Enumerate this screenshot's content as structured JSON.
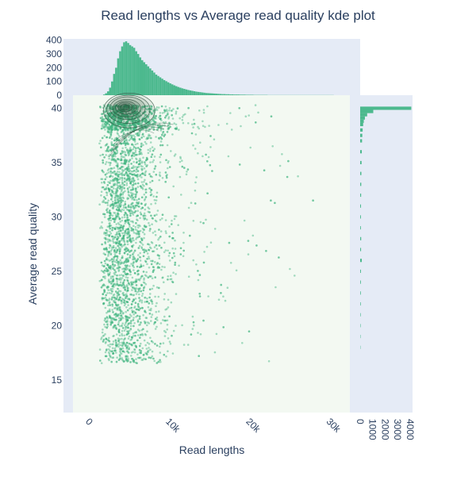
{
  "chart_data": {
    "type": "scatter",
    "title": "Read lengths vs Average read quality kde plot",
    "xlabel": "Read lengths",
    "ylabel": "Average read quality",
    "xlim": [
      -1500,
      33000
    ],
    "ylim": [
      12,
      41.2
    ],
    "x_ticks": [
      0,
      10000,
      20000,
      30000
    ],
    "x_tick_labels": [
      "0",
      "10k",
      "20k",
      "30k"
    ],
    "y_ticks": [
      15,
      20,
      25,
      30,
      35,
      40
    ],
    "y_tick_labels": [
      "15",
      "20",
      "25",
      "30",
      "35",
      "40"
    ],
    "top_hist": {
      "ylim": [
        0,
        410
      ],
      "ticks": [
        0,
        100,
        200,
        300,
        400
      ],
      "tick_labels": [
        "0",
        "100",
        "200",
        "300",
        "400"
      ],
      "bin_width": 250,
      "x_start": 2250,
      "counts": [
        5,
        14,
        28,
        55,
        100,
        155,
        200,
        268,
        320,
        355,
        385,
        392,
        380,
        365,
        355,
        345,
        320,
        300,
        275,
        255,
        240,
        225,
        210,
        195,
        180,
        165,
        150,
        140,
        130,
        120,
        110,
        102,
        94,
        86,
        79,
        72,
        66,
        60,
        55,
        50,
        46,
        42,
        38,
        35,
        32,
        29,
        26,
        24,
        22,
        20,
        18,
        16,
        15,
        14,
        13,
        12,
        11,
        10,
        9,
        8,
        8,
        7,
        7,
        6,
        6,
        5,
        5,
        5,
        4,
        4,
        4,
        3,
        3,
        3,
        3,
        2,
        2,
        2,
        2,
        2,
        2,
        2,
        1,
        1,
        1,
        1,
        1,
        1,
        1,
        1,
        1,
        1,
        1,
        1,
        1,
        1,
        1,
        1,
        1,
        1,
        1,
        1,
        1,
        1,
        1,
        1,
        1,
        1,
        1,
        1,
        1,
        1,
        1,
        1,
        1
      ]
    },
    "right_hist": {
      "xlim": [
        0,
        4200
      ],
      "ticks": [
        0,
        1000,
        2000,
        3000,
        4000
      ],
      "tick_labels": [
        "0",
        "1000",
        "2000",
        "3000",
        "4000"
      ],
      "bins": [
        {
          "y": 40.0,
          "count": 4100
        },
        {
          "y": 39.7,
          "count": 1050
        },
        {
          "y": 39.4,
          "count": 560
        },
        {
          "y": 39.1,
          "count": 380
        },
        {
          "y": 38.8,
          "count": 290
        },
        {
          "y": 38.5,
          "count": 240
        },
        {
          "y": 38.0,
          "count": 200
        },
        {
          "y": 37.5,
          "count": 170
        },
        {
          "y": 37.0,
          "count": 150
        },
        {
          "y": 36.0,
          "count": 130
        },
        {
          "y": 35.0,
          "count": 110
        },
        {
          "y": 34.0,
          "count": 95
        },
        {
          "y": 33.0,
          "count": 85
        },
        {
          "y": 32.0,
          "count": 75
        },
        {
          "y": 31.0,
          "count": 65
        },
        {
          "y": 30.0,
          "count": 60
        },
        {
          "y": 29.0,
          "count": 55
        },
        {
          "y": 28.0,
          "count": 80
        },
        {
          "y": 27.0,
          "count": 70
        },
        {
          "y": 26.0,
          "count": 130
        },
        {
          "y": 25.0,
          "count": 60
        },
        {
          "y": 24.0,
          "count": 55
        },
        {
          "y": 23.0,
          "count": 50
        },
        {
          "y": 22.0,
          "count": 45
        },
        {
          "y": 21.0,
          "count": 40
        },
        {
          "y": 20.0,
          "count": 35
        },
        {
          "y": 19.0,
          "count": 30
        },
        {
          "y": 18.0,
          "count": 25
        }
      ]
    },
    "kde_contours": [
      {
        "cx": 5500,
        "cy": 39.8,
        "rx": 3200,
        "ry": 1.6
      },
      {
        "cx": 5400,
        "cy": 39.9,
        "rx": 2700,
        "ry": 1.3
      },
      {
        "cx": 5300,
        "cy": 40.0,
        "rx": 2200,
        "ry": 1.05
      },
      {
        "cx": 5200,
        "cy": 40.0,
        "rx": 1750,
        "ry": 0.8
      },
      {
        "cx": 5100,
        "cy": 40.05,
        "rx": 1300,
        "ry": 0.6
      },
      {
        "cx": 5000,
        "cy": 40.1,
        "rx": 900,
        "ry": 0.42
      },
      {
        "cx": 4950,
        "cy": 40.1,
        "rx": 550,
        "ry": 0.26
      }
    ],
    "kde_lower_band": {
      "y_from": 35.5,
      "y_to": 38.5,
      "x_from": 3000,
      "x_to": 11000
    },
    "scatter": {
      "n_points": 4200,
      "x_peak": 5000,
      "y_range": [
        14.5,
        40.3
      ],
      "point_color": "#3fb47f",
      "point_opacity": 0.45
    },
    "colors": {
      "plot_bg": "#f3f9f2",
      "margin_bg": "#e5ebf6",
      "bar": "#4cb98e",
      "contour_line": "#2f4f3f",
      "contour_fill": "#1f5135",
      "text": "#2a3f5f",
      "tick_text": "#2a3f5f"
    }
  }
}
